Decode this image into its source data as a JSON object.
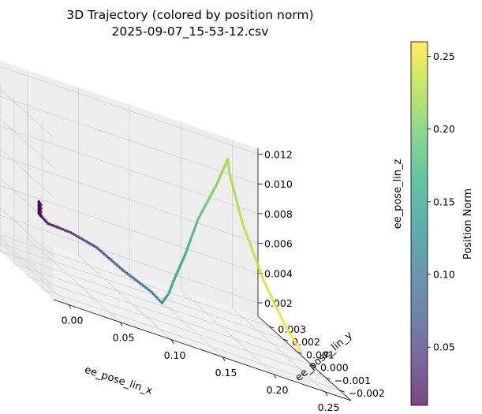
{
  "chart_data": {
    "type": "scatter",
    "projection": "3d",
    "title": "3D Trajectory (colored by position norm)",
    "subtitle": "2025-09-07_15-53-12.csv",
    "xlabel": "ee_pose_lin_x",
    "ylabel": "ee_pose_lin_y",
    "zlabel": "ee_pose_lin_z",
    "xlim": [
      -0.015,
      0.275
    ],
    "ylim": [
      -0.0028,
      0.0038
    ],
    "zlim": [
      0.0011,
      0.0124
    ],
    "xticks": [
      0.0,
      0.05,
      0.1,
      0.15,
      0.2,
      0.25
    ],
    "xtick_labels": [
      "0.00",
      "0.05",
      "0.10",
      "0.15",
      "0.20",
      "0.25"
    ],
    "yticks": [
      -0.002,
      -0.001,
      0.0,
      0.001,
      0.002,
      0.003
    ],
    "ytick_labels": [
      "−0.002",
      "−0.001",
      "0.000",
      "0.001",
      "0.002",
      "0.003"
    ],
    "zticks": [
      0.002,
      0.004,
      0.006,
      0.008,
      0.01,
      0.012
    ],
    "ztick_labels": [
      "0.002",
      "0.004",
      "0.006",
      "0.008",
      "0.010",
      "0.012"
    ],
    "grid": true,
    "colormap": "viridis",
    "colorbar": {
      "label": "Position Norm",
      "range": [
        0.01,
        0.26
      ],
      "ticks": [
        0.05,
        0.1,
        0.15,
        0.2,
        0.25
      ],
      "tick_labels": [
        "0.05",
        "0.10",
        "0.15",
        "0.20",
        "0.25"
      ]
    },
    "trajectory_anchors": [
      {
        "x": 0.005,
        "y": -0.0003,
        "z": 0.006
      },
      {
        "x": 0.005,
        "y": -0.0003,
        "z": 0.0052
      },
      {
        "x": 0.015,
        "y": -0.0002,
        "z": 0.0047
      },
      {
        "x": 0.04,
        "y": 0.0,
        "z": 0.0045
      },
      {
        "x": 0.065,
        "y": 0.0,
        "z": 0.0041
      },
      {
        "x": 0.09,
        "y": -0.0001,
        "z": 0.0032
      },
      {
        "x": 0.115,
        "y": -0.0003,
        "z": 0.0025
      },
      {
        "x": 0.125,
        "y": -0.0003,
        "z": 0.002
      },
      {
        "x": 0.14,
        "y": 0.0003,
        "z": 0.0025
      },
      {
        "x": 0.15,
        "y": 0.0007,
        "z": 0.0032
      },
      {
        "x": 0.165,
        "y": 0.001,
        "z": 0.005
      },
      {
        "x": 0.185,
        "y": 0.0015,
        "z": 0.0075
      },
      {
        "x": 0.21,
        "y": 0.002,
        "z": 0.01
      },
      {
        "x": 0.225,
        "y": 0.0023,
        "z": 0.0118
      },
      {
        "x": 0.228,
        "y": 0.0024,
        "z": 0.0108
      },
      {
        "x": 0.235,
        "y": 0.002,
        "z": 0.008
      },
      {
        "x": 0.245,
        "y": 0.0012,
        "z": 0.005
      },
      {
        "x": 0.255,
        "y": 0.0005,
        "z": 0.003
      },
      {
        "x": 0.262,
        "y": -0.0002,
        "z": 0.0018
      }
    ],
    "point_alpha": 0.85
  }
}
